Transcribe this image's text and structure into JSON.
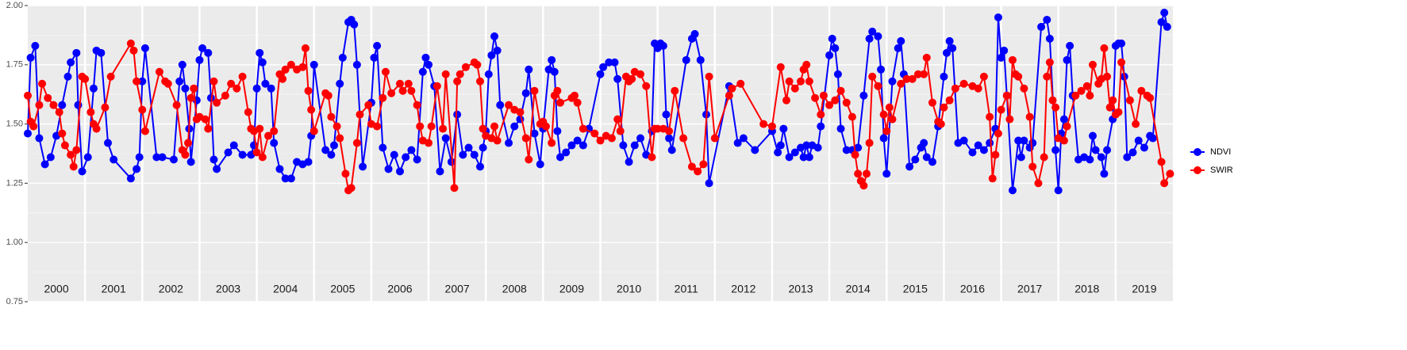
{
  "chart_data": {
    "type": "line",
    "xlim": [
      2000,
      2020
    ],
    "xticks": [
      2000,
      2001,
      2002,
      2003,
      2004,
      2005,
      2006,
      2007,
      2008,
      2009,
      2010,
      2011,
      2012,
      2013,
      2014,
      2015,
      2016,
      2017,
      2018,
      2019
    ],
    "ylim": [
      0.75,
      2.0
    ],
    "yticks": [
      {
        "value": 0.75,
        "label": "0.75"
      },
      {
        "value": 1.0,
        "label": "1.00"
      },
      1.25,
      {
        "value": 1.5,
        "label": "1.50"
      },
      1.75,
      {
        "value": 2.0,
        "label": "2.00"
      }
    ],
    "grid": true,
    "legend": "right",
    "series": [
      {
        "name": "NDVI",
        "color": "#0000ff",
        "x": [
          2000.0,
          2000.05,
          2000.13,
          2000.2,
          2000.3,
          2000.4,
          2000.5,
          2000.6,
          2000.7,
          2000.75,
          2000.85,
          2000.88,
          2000.95,
          2001.05,
          2001.15,
          2001.2,
          2001.28,
          2001.4,
          2001.5,
          2001.8,
          2001.9,
          2001.95,
          2002.0,
          2002.05,
          2002.25,
          2002.35,
          2002.55,
          2002.65,
          2002.7,
          2002.75,
          2002.82,
          2002.85,
          2002.95,
          2003.0,
          2003.05,
          2003.15,
          2003.2,
          2003.25,
          2003.3,
          2003.5,
          2003.6,
          2003.75,
          2003.9,
          2003.95,
          2004.0,
          2004.05,
          2004.1,
          2004.15,
          2004.25,
          2004.3,
          2004.4,
          2004.5,
          2004.6,
          2004.7,
          2004.8,
          2004.9,
          2004.95,
          2005.0,
          2005.2,
          2005.3,
          2005.35,
          2005.45,
          2005.5,
          2005.6,
          2005.65,
          2005.7,
          2005.75,
          2005.85,
          2006.0,
          2006.05,
          2006.1,
          2006.2,
          2006.3,
          2006.4,
          2006.5,
          2006.6,
          2006.7,
          2006.8,
          2006.9,
          2006.95,
          2007.0,
          2007.1,
          2007.2,
          2007.3,
          2007.4,
          2007.5,
          2007.6,
          2007.7,
          2007.8,
          2007.9,
          2007.95,
          2008.0,
          2008.05,
          2008.1,
          2008.15,
          2008.2,
          2008.25,
          2008.4,
          2008.5,
          2008.6,
          2008.7,
          2008.75,
          2008.85,
          2008.95,
          2009.0,
          2009.1,
          2009.15,
          2009.2,
          2009.25,
          2009.3,
          2009.4,
          2009.5,
          2009.6,
          2009.7,
          2009.8,
          2010.0,
          2010.05,
          2010.15,
          2010.25,
          2010.3,
          2010.4,
          2010.5,
          2010.6,
          2010.7,
          2010.8,
          2010.9,
          2010.95,
          2011.0,
          2011.05,
          2011.1,
          2011.15,
          2011.2,
          2011.25,
          2011.5,
          2011.6,
          2011.65,
          2011.75,
          2011.85,
          2011.9,
          2012.25,
          2012.4,
          2012.5,
          2012.7,
          2013.0,
          2013.1,
          2013.15,
          2013.2,
          2013.3,
          2013.4,
          2013.5,
          2013.55,
          2013.6,
          2013.65,
          2013.7,
          2013.8,
          2013.85,
          2014.0,
          2014.05,
          2014.1,
          2014.15,
          2014.2,
          2014.3,
          2014.4,
          2014.5,
          2014.6,
          2014.7,
          2014.75,
          2014.85,
          2014.9,
          2014.95,
          2015.0,
          2015.1,
          2015.2,
          2015.25,
          2015.3,
          2015.4,
          2015.5,
          2015.6,
          2015.65,
          2015.7,
          2015.8,
          2015.9,
          2016.0,
          2016.05,
          2016.1,
          2016.15,
          2016.25,
          2016.35,
          2016.5,
          2016.6,
          2016.7,
          2016.8,
          2016.9,
          2016.95,
          2017.0,
          2017.05,
          2017.1,
          2017.2,
          2017.3,
          2017.35,
          2017.4,
          2017.5,
          2017.55,
          2017.7,
          2017.8,
          2017.85,
          2017.95,
          2018.0,
          2018.05,
          2018.1,
          2018.15,
          2018.2,
          2018.25,
          2018.35,
          2018.45,
          2018.55,
          2018.6,
          2018.65,
          2018.75,
          2018.8,
          2018.85,
          2018.95,
          2019.0,
          2019.05,
          2019.1,
          2019.15,
          2019.2,
          2019.3,
          2019.4,
          2019.5,
          2019.6,
          2019.65,
          2019.8,
          2019.85,
          2019.9
        ],
        "values": [
          1.46,
          1.78,
          1.83,
          1.44,
          1.33,
          1.36,
          1.45,
          1.58,
          1.7,
          1.76,
          1.8,
          1.58,
          1.3,
          1.36,
          1.65,
          1.81,
          1.8,
          1.42,
          1.35,
          1.27,
          1.31,
          1.36,
          1.68,
          1.82,
          1.36,
          1.36,
          1.35,
          1.68,
          1.75,
          1.65,
          1.48,
          1.34,
          1.6,
          1.77,
          1.82,
          1.8,
          1.61,
          1.35,
          1.31,
          1.38,
          1.41,
          1.37,
          1.37,
          1.41,
          1.65,
          1.8,
          1.76,
          1.67,
          1.65,
          1.42,
          1.31,
          1.27,
          1.27,
          1.34,
          1.33,
          1.34,
          1.45,
          1.75,
          1.39,
          1.37,
          1.41,
          1.67,
          1.78,
          1.93,
          1.94,
          1.92,
          1.75,
          1.32,
          1.59,
          1.78,
          1.83,
          1.4,
          1.31,
          1.37,
          1.3,
          1.36,
          1.39,
          1.35,
          1.72,
          1.78,
          1.75,
          1.66,
          1.3,
          1.44,
          1.34,
          1.54,
          1.37,
          1.4,
          1.37,
          1.32,
          1.4,
          1.47,
          1.71,
          1.79,
          1.87,
          1.81,
          1.58,
          1.42,
          1.49,
          1.52,
          1.63,
          1.73,
          1.46,
          1.33,
          1.48,
          1.73,
          1.77,
          1.72,
          1.47,
          1.36,
          1.38,
          1.41,
          1.43,
          1.41,
          1.48,
          1.71,
          1.74,
          1.76,
          1.76,
          1.69,
          1.41,
          1.34,
          1.41,
          1.44,
          1.37,
          1.47,
          1.84,
          1.82,
          1.84,
          1.83,
          1.54,
          1.44,
          1.39,
          1.77,
          1.86,
          1.88,
          1.77,
          1.54,
          1.25,
          1.66,
          1.42,
          1.44,
          1.39,
          1.47,
          1.38,
          1.41,
          1.48,
          1.36,
          1.38,
          1.4,
          1.36,
          1.41,
          1.36,
          1.41,
          1.4,
          1.49,
          1.79,
          1.86,
          1.82,
          1.71,
          1.48,
          1.39,
          1.39,
          1.4,
          1.62,
          1.86,
          1.89,
          1.87,
          1.73,
          1.44,
          1.29,
          1.68,
          1.82,
          1.85,
          1.71,
          1.32,
          1.35,
          1.4,
          1.42,
          1.36,
          1.34,
          1.49,
          1.7,
          1.8,
          1.85,
          1.82,
          1.42,
          1.43,
          1.38,
          1.41,
          1.39,
          1.42,
          1.48,
          1.95,
          1.78,
          1.81,
          1.62,
          1.22,
          1.43,
          1.36,
          1.43,
          1.4,
          1.42,
          1.91,
          1.94,
          1.86,
          1.39,
          1.22,
          1.46,
          1.52,
          1.77,
          1.83,
          1.62,
          1.35,
          1.36,
          1.35,
          1.45,
          1.39,
          1.36,
          1.29,
          1.39,
          1.52,
          1.83,
          1.84,
          1.84,
          1.7,
          1.36,
          1.38,
          1.43,
          1.4,
          1.45,
          1.44,
          1.93,
          1.97,
          1.91
        ]
      },
      {
        "name": "SWIR",
        "color": "#ff0000",
        "x": [
          2000.0,
          2000.05,
          2000.1,
          2000.2,
          2000.25,
          2000.35,
          2000.45,
          2000.55,
          2000.6,
          2000.65,
          2000.75,
          2000.8,
          2000.85,
          2000.95,
          2001.0,
          2001.1,
          2001.15,
          2001.2,
          2001.35,
          2001.45,
          2001.8,
          2001.85,
          2001.9,
          2002.0,
          2002.05,
          2002.3,
          2002.4,
          2002.45,
          2002.6,
          2002.7,
          2002.75,
          2002.8,
          2002.85,
          2002.9,
          2002.95,
          2003.0,
          2003.1,
          2003.15,
          2003.25,
          2003.3,
          2003.45,
          2003.55,
          2003.65,
          2003.75,
          2003.85,
          2003.9,
          2003.95,
          2004.0,
          2004.05,
          2004.1,
          2004.2,
          2004.3,
          2004.4,
          2004.45,
          2004.5,
          2004.6,
          2004.7,
          2004.8,
          2004.85,
          2004.9,
          2004.95,
          2005.0,
          2005.2,
          2005.25,
          2005.3,
          2005.4,
          2005.45,
          2005.55,
          2005.6,
          2005.65,
          2005.75,
          2005.8,
          2005.95,
          2006.0,
          2006.1,
          2006.2,
          2006.25,
          2006.35,
          2006.5,
          2006.55,
          2006.65,
          2006.7,
          2006.8,
          2006.85,
          2006.9,
          2007.0,
          2007.05,
          2007.15,
          2007.25,
          2007.3,
          2007.45,
          2007.5,
          2007.55,
          2007.65,
          2007.8,
          2007.85,
          2007.9,
          2007.95,
          2008.0,
          2008.1,
          2008.15,
          2008.2,
          2008.4,
          2008.5,
          2008.6,
          2008.7,
          2008.75,
          2008.85,
          2008.95,
          2009.0,
          2009.05,
          2009.15,
          2009.2,
          2009.25,
          2009.3,
          2009.5,
          2009.55,
          2009.6,
          2009.7,
          2009.9,
          2010.0,
          2010.1,
          2010.2,
          2010.3,
          2010.35,
          2010.45,
          2010.5,
          2010.55,
          2010.6,
          2010.7,
          2010.8,
          2010.9,
          2010.95,
          2011.0,
          2011.1,
          2011.2,
          2011.3,
          2011.45,
          2011.6,
          2011.7,
          2011.8,
          2011.9,
          2012.0,
          2012.25,
          2012.3,
          2012.45,
          2012.85,
          2013.0,
          2013.15,
          2013.25,
          2013.3,
          2013.4,
          2013.5,
          2013.55,
          2013.6,
          2013.65,
          2013.75,
          2013.85,
          2013.9,
          2014.0,
          2014.1,
          2014.2,
          2014.3,
          2014.4,
          2014.45,
          2014.5,
          2014.55,
          2014.6,
          2014.65,
          2014.7,
          2014.75,
          2014.85,
          2014.95,
          2015.0,
          2015.05,
          2015.1,
          2015.25,
          2015.35,
          2015.45,
          2015.55,
          2015.65,
          2015.7,
          2015.8,
          2015.9,
          2015.95,
          2016.0,
          2016.1,
          2016.2,
          2016.35,
          2016.5,
          2016.6,
          2016.7,
          2016.8,
          2016.85,
          2016.9,
          2016.95,
          2017.0,
          2017.1,
          2017.15,
          2017.2,
          2017.25,
          2017.3,
          2017.4,
          2017.5,
          2017.55,
          2017.65,
          2017.75,
          2017.8,
          2017.85,
          2017.9,
          2017.95,
          2018.0,
          2018.1,
          2018.15,
          2018.3,
          2018.4,
          2018.5,
          2018.55,
          2018.6,
          2018.7,
          2018.75,
          2018.8,
          2018.85,
          2018.9,
          2018.95,
          2019.0,
          2019.05,
          2019.1,
          2019.25,
          2019.35,
          2019.45,
          2019.55,
          2019.6,
          2019.8,
          2019.85,
          2019.95
        ],
        "values": [
          1.62,
          1.51,
          1.49,
          1.58,
          1.67,
          1.61,
          1.58,
          1.55,
          1.46,
          1.41,
          1.37,
          1.32,
          1.39,
          1.7,
          1.69,
          1.55,
          1.5,
          1.48,
          1.57,
          1.7,
          1.84,
          1.81,
          1.68,
          1.56,
          1.47,
          1.72,
          1.68,
          1.67,
          1.58,
          1.39,
          1.37,
          1.42,
          1.61,
          1.65,
          1.52,
          1.53,
          1.52,
          1.48,
          1.68,
          1.59,
          1.62,
          1.67,
          1.65,
          1.7,
          1.55,
          1.48,
          1.47,
          1.38,
          1.48,
          1.36,
          1.45,
          1.47,
          1.71,
          1.69,
          1.73,
          1.75,
          1.73,
          1.74,
          1.82,
          1.64,
          1.56,
          1.47,
          1.63,
          1.62,
          1.53,
          1.49,
          1.44,
          1.29,
          1.22,
          1.23,
          1.42,
          1.54,
          1.58,
          1.5,
          1.49,
          1.61,
          1.72,
          1.63,
          1.67,
          1.64,
          1.67,
          1.64,
          1.58,
          1.49,
          1.43,
          1.42,
          1.49,
          1.66,
          1.48,
          1.71,
          1.23,
          1.68,
          1.71,
          1.74,
          1.76,
          1.75,
          1.68,
          1.48,
          1.45,
          1.44,
          1.49,
          1.43,
          1.58,
          1.56,
          1.55,
          1.44,
          1.35,
          1.64,
          1.5,
          1.51,
          1.49,
          1.42,
          1.62,
          1.64,
          1.59,
          1.61,
          1.62,
          1.59,
          1.48,
          1.46,
          1.43,
          1.45,
          1.44,
          1.52,
          1.47,
          1.7,
          1.68,
          1.69,
          1.72,
          1.71,
          1.66,
          1.36,
          1.48,
          1.48,
          1.48,
          1.47,
          1.64,
          1.44,
          1.32,
          1.3,
          1.33,
          1.7,
          1.44,
          1.62,
          1.65,
          1.67,
          1.5,
          1.49,
          1.74,
          1.6,
          1.68,
          1.65,
          1.68,
          1.73,
          1.75,
          1.68,
          1.61,
          1.54,
          1.62,
          1.58,
          1.6,
          1.64,
          1.59,
          1.53,
          1.37,
          1.29,
          1.26,
          1.24,
          1.29,
          1.42,
          1.7,
          1.66,
          1.54,
          1.47,
          1.57,
          1.52,
          1.67,
          1.69,
          1.69,
          1.71,
          1.71,
          1.78,
          1.59,
          1.51,
          1.5,
          1.57,
          1.6,
          1.65,
          1.67,
          1.66,
          1.65,
          1.7,
          1.53,
          1.27,
          1.37,
          1.46,
          1.56,
          1.62,
          1.52,
          1.77,
          1.71,
          1.7,
          1.65,
          1.53,
          1.32,
          1.25,
          1.36,
          1.7,
          1.76,
          1.6,
          1.57,
          1.44,
          1.43,
          1.49,
          1.62,
          1.64,
          1.66,
          1.62,
          1.75,
          1.67,
          1.69,
          1.82,
          1.7,
          1.57,
          1.6,
          1.54,
          1.55,
          1.76,
          1.6,
          1.5,
          1.64,
          1.62,
          1.61,
          1.34,
          1.25,
          1.29
        ]
      }
    ]
  }
}
